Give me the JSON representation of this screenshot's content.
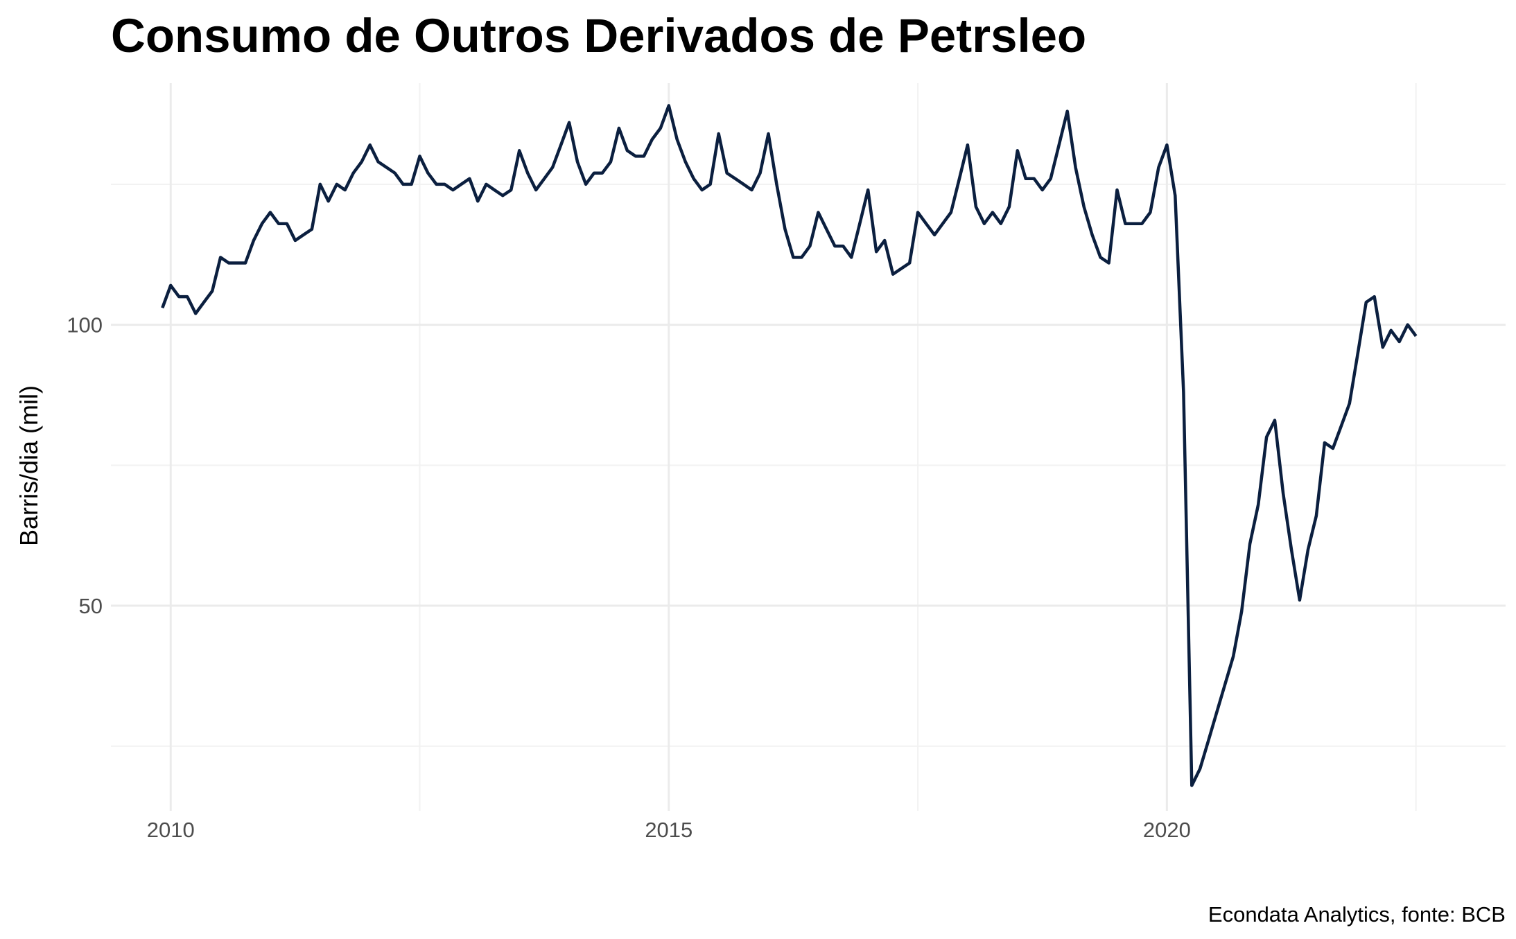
{
  "chart_data": {
    "type": "line",
    "title": "Consumo de Outros Derivados de Petrsleo",
    "xlabel": "",
    "ylabel": "Barris/dia (mil)",
    "caption": "Econdata Analytics, fonte: BCB",
    "xlim": [
      2009.4,
      2023.4
    ],
    "ylim": [
      13.5,
      143
    ],
    "x_ticks": [
      2010,
      2015,
      2020
    ],
    "x_tick_labels": [
      "2010",
      "2015",
      "2020"
    ],
    "y_ticks": [
      50,
      100
    ],
    "y_tick_labels": [
      "50",
      "100"
    ],
    "x_minor_ticks": [
      2012.5,
      2017.5,
      2022.5
    ],
    "y_minor_ticks": [
      25,
      75,
      125
    ],
    "grid": true,
    "legend": "none",
    "line_color": "#0b1f3f",
    "series": [
      {
        "x": [
          2009.917,
          2010.0,
          2010.083,
          2010.167,
          2010.25,
          2010.333,
          2010.417,
          2010.5,
          2010.583,
          2010.667,
          2010.75,
          2010.833,
          2010.917,
          2011.0,
          2011.083,
          2011.167,
          2011.25,
          2011.333,
          2011.417,
          2011.5,
          2011.583,
          2011.667,
          2011.75,
          2011.833,
          2011.917,
          2012.0,
          2012.083,
          2012.167,
          2012.25,
          2012.333,
          2012.417,
          2012.5,
          2012.583,
          2012.667,
          2012.75,
          2012.833,
          2012.917,
          2013.0,
          2013.083,
          2013.167,
          2013.25,
          2013.333,
          2013.417,
          2013.5,
          2013.583,
          2013.667,
          2013.75,
          2013.833,
          2013.917,
          2014.0,
          2014.083,
          2014.167,
          2014.25,
          2014.333,
          2014.417,
          2014.5,
          2014.583,
          2014.667,
          2014.75,
          2014.833,
          2014.917,
          2015.0,
          2015.083,
          2015.167,
          2015.25,
          2015.333,
          2015.417,
          2015.5,
          2015.583,
          2015.667,
          2015.75,
          2015.833,
          2015.917,
          2016.0,
          2016.083,
          2016.167,
          2016.25,
          2016.333,
          2016.417,
          2016.5,
          2016.583,
          2016.667,
          2016.75,
          2016.833,
          2016.917,
          2017.0,
          2017.083,
          2017.167,
          2017.25,
          2017.333,
          2017.417,
          2017.5,
          2017.583,
          2017.667,
          2017.75,
          2017.833,
          2017.917,
          2018.0,
          2018.083,
          2018.167,
          2018.25,
          2018.333,
          2018.417,
          2018.5,
          2018.583,
          2018.667,
          2018.75,
          2018.833,
          2018.917,
          2019.0,
          2019.083,
          2019.167,
          2019.25,
          2019.333,
          2019.417,
          2019.5,
          2019.583,
          2019.667,
          2019.75,
          2019.833,
          2019.917,
          2020.0,
          2020.083,
          2020.167,
          2020.25,
          2020.333,
          2020.417,
          2020.5,
          2020.583,
          2020.667,
          2020.75,
          2020.833,
          2020.917,
          2021.0,
          2021.083,
          2021.167,
          2021.25,
          2021.333,
          2021.417,
          2021.5,
          2021.583,
          2021.667,
          2021.75,
          2021.833,
          2021.917,
          2022.0,
          2022.083,
          2022.167,
          2022.25,
          2022.333,
          2022.417,
          2022.5
        ],
        "y": [
          103,
          107,
          105,
          105,
          102,
          104,
          106,
          112,
          111,
          111,
          111,
          115,
          118,
          120,
          118,
          118,
          115,
          116,
          117,
          125,
          122,
          125,
          124,
          127,
          129,
          132,
          129,
          128,
          127,
          125,
          125,
          130,
          127,
          125,
          125,
          124,
          125,
          126,
          122,
          125,
          124,
          123,
          124,
          131,
          127,
          124,
          126,
          128,
          132,
          136,
          129,
          125,
          127,
          127,
          129,
          135,
          131,
          130,
          130,
          133,
          135,
          139,
          133,
          129,
          126,
          124,
          125,
          134,
          127,
          126,
          125,
          124,
          127,
          134,
          125,
          117,
          112,
          112,
          114,
          120,
          117,
          114,
          114,
          112,
          118,
          124,
          113,
          115,
          109,
          110,
          111,
          120,
          118,
          116,
          118,
          120,
          126,
          132,
          121,
          118,
          120,
          118,
          121,
          131,
          126,
          126,
          124,
          126,
          132,
          138,
          128,
          121,
          116,
          112,
          111,
          124,
          118,
          118,
          118,
          120,
          128,
          132,
          123,
          88,
          18,
          21,
          26,
          31,
          36,
          41,
          49,
          61,
          68,
          80,
          83,
          70,
          60,
          51,
          60,
          66,
          79,
          78,
          82,
          86,
          95,
          104,
          105,
          96,
          99,
          97,
          100,
          98
        ]
      }
    ]
  }
}
